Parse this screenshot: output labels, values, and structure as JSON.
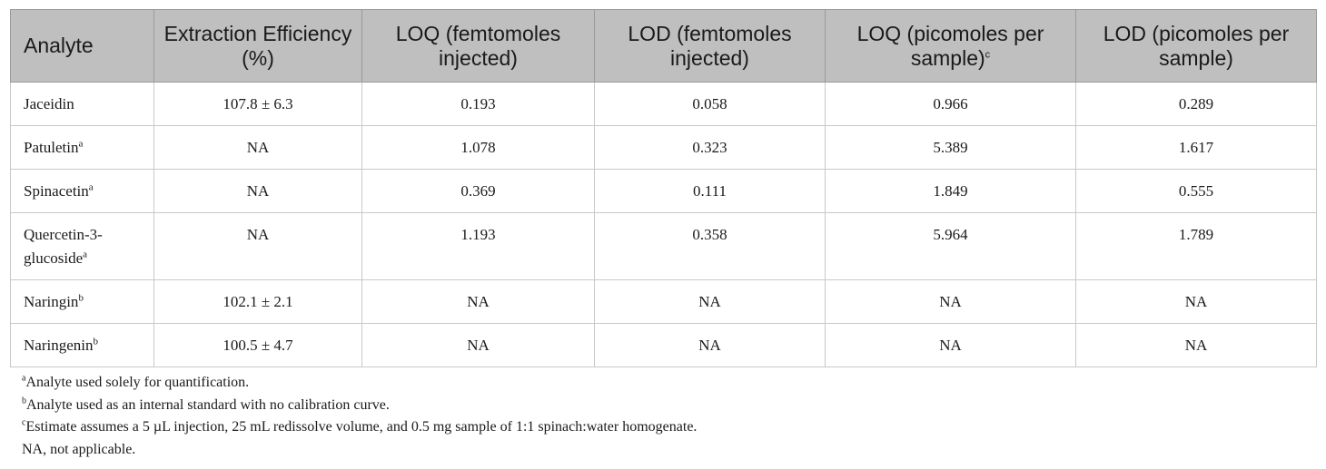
{
  "table": {
    "headers": [
      {
        "main": "Analyte",
        "sup": ""
      },
      {
        "main": "Extraction Efficiency (%)",
        "sup": ""
      },
      {
        "main": "LOQ (femtomoles injected)",
        "sup": ""
      },
      {
        "main": "LOD (femtomoles injected)",
        "sup": ""
      },
      {
        "main": "LOQ (picomoles per sample)",
        "sup": "c"
      },
      {
        "main": "LOD (picomoles per sample)",
        "sup": ""
      }
    ],
    "rows": [
      {
        "analyte": "Jaceidin",
        "sup": "",
        "cells": [
          "107.8 ± 6.3",
          "0.193",
          "0.058",
          "0.966",
          "0.289"
        ]
      },
      {
        "analyte": "Patuletin",
        "sup": "a",
        "cells": [
          "NA",
          "1.078",
          "0.323",
          "5.389",
          "1.617"
        ]
      },
      {
        "analyte": "Spinacetin",
        "sup": "a",
        "cells": [
          "NA",
          "0.369",
          "0.111",
          "1.849",
          "0.555"
        ]
      },
      {
        "analyte": "Quercetin-3-glucoside",
        "sup": "a",
        "cells": [
          "NA",
          "1.193",
          "0.358",
          "5.964",
          "1.789"
        ]
      },
      {
        "analyte": "Naringin",
        "sup": "b",
        "cells": [
          "102.1 ± 2.1",
          "NA",
          "NA",
          "NA",
          "NA"
        ]
      },
      {
        "analyte": "Naringenin",
        "sup": "b",
        "cells": [
          "100.5 ± 4.7",
          "NA",
          "NA",
          "NA",
          "NA"
        ]
      }
    ]
  },
  "footnotes": [
    {
      "mark": "a",
      "text": "Analyte used solely for quantification."
    },
    {
      "mark": "b",
      "text": "Analyte used as an internal standard with no calibration curve."
    },
    {
      "mark": "c",
      "text": "Estimate assumes a 5 µL injection, 25 mL redissolve volume, and 0.5 mg sample of 1:1 spinach:water homogenate."
    },
    {
      "mark": "",
      "text": "NA, not applicable."
    }
  ]
}
